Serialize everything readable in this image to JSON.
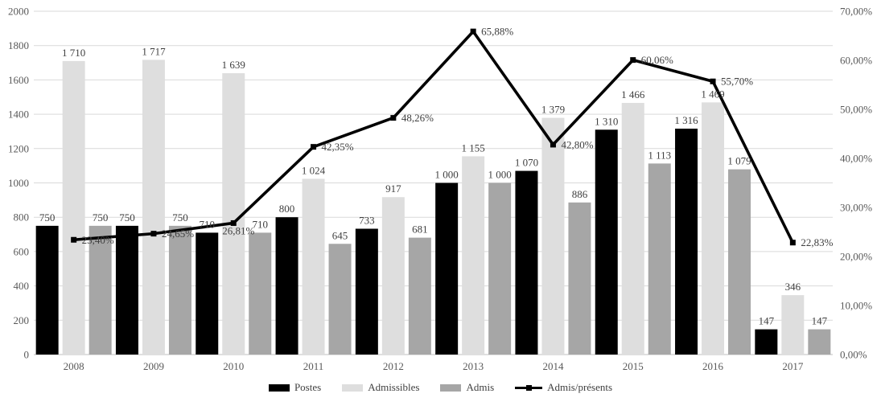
{
  "chart_data": {
    "type": "combo-bar-line",
    "title": "",
    "categories": [
      "2008",
      "2009",
      "2010",
      "2011",
      "2012",
      "2013",
      "2014",
      "2015",
      "2016",
      "2017"
    ],
    "series": [
      {
        "name": "Postes",
        "type": "bar",
        "color": "#000000",
        "values": [
          750,
          750,
          710,
          800,
          733,
          1000,
          1070,
          1310,
          1316,
          147
        ],
        "labels": [
          "750",
          "750",
          "710",
          "800",
          "733",
          "1 000",
          "1 070",
          "1 310",
          "1 316",
          "147"
        ]
      },
      {
        "name": "Admissibles",
        "type": "bar",
        "color": "#DEDEDE",
        "values": [
          1710,
          1717,
          1639,
          1024,
          917,
          1155,
          1379,
          1466,
          1469,
          346
        ],
        "labels": [
          "1 710",
          "1 717",
          "1 639",
          "1 024",
          "917",
          "1 155",
          "1 379",
          "1 466",
          "1 469",
          "346"
        ]
      },
      {
        "name": "Admis",
        "type": "bar",
        "color": "#A6A6A6",
        "values": [
          750,
          750,
          710,
          645,
          681,
          1000,
          886,
          1113,
          1079,
          147
        ],
        "labels": [
          "750",
          "750",
          "710",
          "645",
          "681",
          "1 000",
          "886",
          "1 113",
          "1 079",
          "147"
        ]
      },
      {
        "name": "Admis/présents",
        "type": "line",
        "color": "#000000",
        "values": [
          23.4,
          24.65,
          26.81,
          42.35,
          48.26,
          65.88,
          42.8,
          60.06,
          55.7,
          22.83
        ],
        "labels": [
          "23,40%",
          "24,65%",
          "26,81%",
          "42,35%",
          "48,26%",
          "65,88%",
          "42,80%",
          "60,06%",
          "55,70%",
          "22,83%"
        ]
      }
    ],
    "left_axis": {
      "min": 0,
      "max": 2000,
      "step": 200,
      "ticks": [
        "0",
        "200",
        "400",
        "600",
        "800",
        "1000",
        "1200",
        "1400",
        "1600",
        "1800",
        "2000"
      ]
    },
    "right_axis": {
      "min": 0,
      "max": 70,
      "step": 10,
      "ticks": [
        "0,00%",
        "10,00%",
        "20,00%",
        "30,00%",
        "40,00%",
        "50,00%",
        "60,00%",
        "70,00%"
      ]
    },
    "grid": true,
    "legend_position": "bottom",
    "style": {
      "gridline_color": "#D9D9D9",
      "axis_line_color": "#BFBFBF",
      "tick_label_color": "#595959",
      "data_label_color": "#404040",
      "line_color": "#000000"
    }
  }
}
